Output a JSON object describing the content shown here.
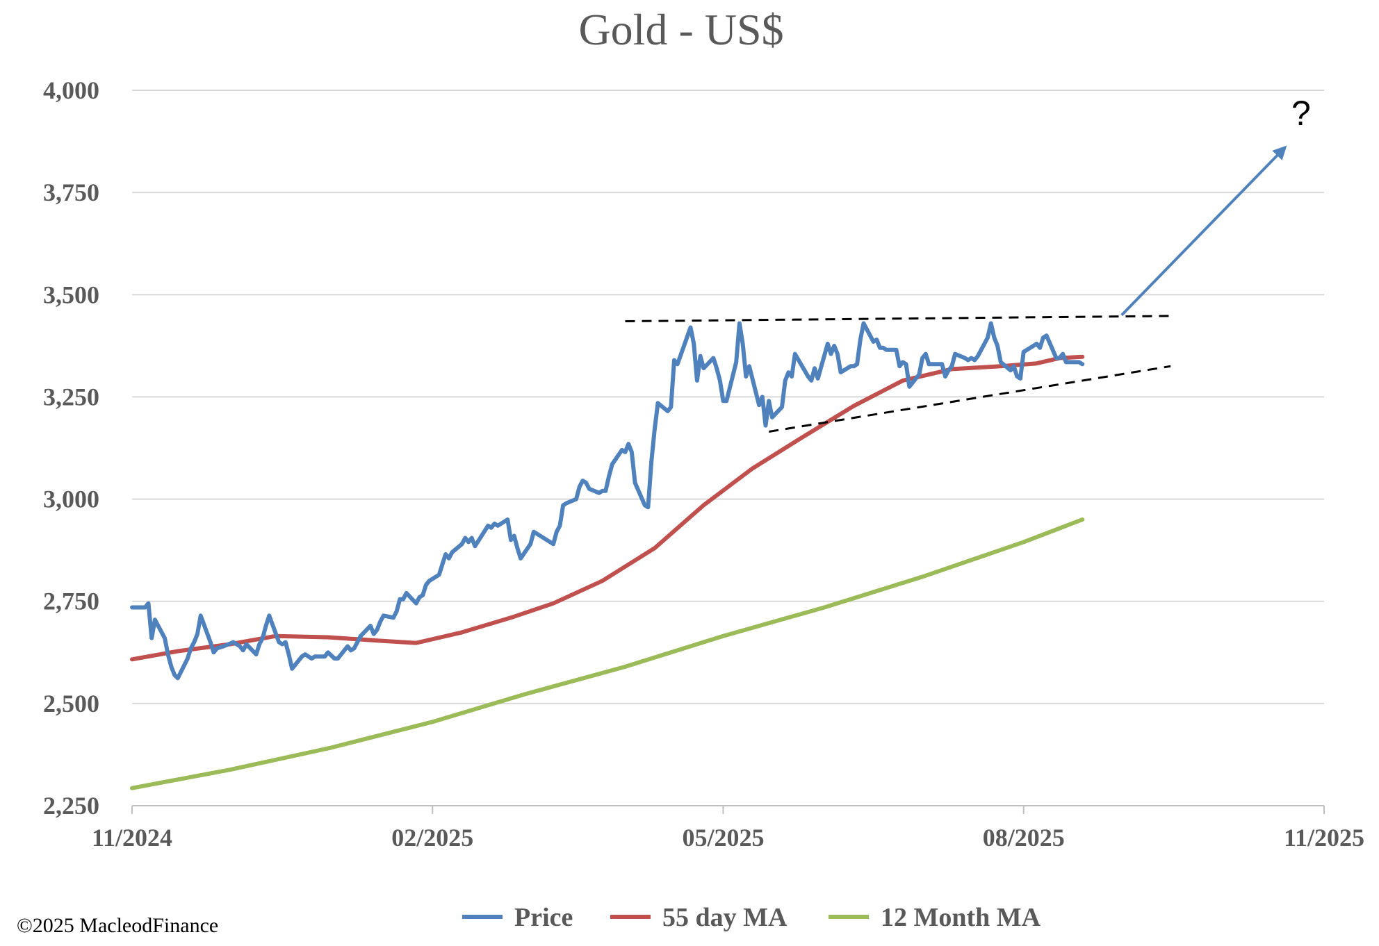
{
  "chart_data": {
    "type": "line",
    "title": "Gold - US$",
    "xlabel": "",
    "ylabel": "",
    "ylim": [
      2250,
      4000
    ],
    "xlim": [
      "2024-11",
      "2025-11"
    ],
    "grid": true,
    "legend_position": "bottom",
    "y_ticks": [
      {
        "value": 2250,
        "label": "2,250"
      },
      {
        "value": 2500,
        "label": "2,500"
      },
      {
        "value": 2750,
        "label": "2,750"
      },
      {
        "value": 3000,
        "label": "3,000"
      },
      {
        "value": 3250,
        "label": "3,250"
      },
      {
        "value": 3500,
        "label": "3,500"
      },
      {
        "value": 3750,
        "label": "3,750"
      },
      {
        "value": 4000,
        "label": "4,000"
      }
    ],
    "x_ticks": [
      {
        "value": "2024-11",
        "label": "11/2024"
      },
      {
        "value": "2025-02",
        "label": "02/2025"
      },
      {
        "value": "2025-05",
        "label": "05/2025"
      },
      {
        "value": "2025-08",
        "label": "08/2025"
      },
      {
        "value": "2025-11",
        "label": "11/2025"
      }
    ],
    "series": [
      {
        "name": "Price",
        "color": "#4f81bd",
        "points": [
          [
            "2024-11-01",
            2735
          ],
          [
            "2024-11-05",
            2735
          ],
          [
            "2024-11-06",
            2745
          ],
          [
            "2024-11-07",
            2660
          ],
          [
            "2024-11-08",
            2705
          ],
          [
            "2024-11-11",
            2660
          ],
          [
            "2024-11-12",
            2620
          ],
          [
            "2024-11-13",
            2590
          ],
          [
            "2024-11-14",
            2570
          ],
          [
            "2024-11-15",
            2562
          ],
          [
            "2024-11-18",
            2610
          ],
          [
            "2024-11-19",
            2635
          ],
          [
            "2024-11-20",
            2650
          ],
          [
            "2024-11-21",
            2670
          ],
          [
            "2024-11-22",
            2715
          ],
          [
            "2024-11-25",
            2650
          ],
          [
            "2024-11-26",
            2625
          ],
          [
            "2024-11-27",
            2635
          ],
          [
            "2024-11-29",
            2640
          ],
          [
            "2024-12-02",
            2650
          ],
          [
            "2024-12-03",
            2645
          ],
          [
            "2024-12-04",
            2640
          ],
          [
            "2024-12-05",
            2630
          ],
          [
            "2024-12-06",
            2645
          ],
          [
            "2024-12-09",
            2620
          ],
          [
            "2024-12-10",
            2645
          ],
          [
            "2024-12-11",
            2660
          ],
          [
            "2024-12-12",
            2690
          ],
          [
            "2024-12-13",
            2715
          ],
          [
            "2024-12-16",
            2650
          ],
          [
            "2024-12-17",
            2645
          ],
          [
            "2024-12-18",
            2650
          ],
          [
            "2024-12-19",
            2620
          ],
          [
            "2024-12-20",
            2585
          ],
          [
            "2024-12-23",
            2615
          ],
          [
            "2024-12-24",
            2620
          ],
          [
            "2024-12-26",
            2610
          ],
          [
            "2024-12-27",
            2615
          ],
          [
            "2024-12-30",
            2615
          ],
          [
            "2024-12-31",
            2625
          ],
          [
            "2025-01-02",
            2610
          ],
          [
            "2025-01-03",
            2610
          ],
          [
            "2025-01-06",
            2640
          ],
          [
            "2025-01-07",
            2630
          ],
          [
            "2025-01-08",
            2635
          ],
          [
            "2025-01-09",
            2650
          ],
          [
            "2025-01-10",
            2665
          ],
          [
            "2025-01-13",
            2690
          ],
          [
            "2025-01-14",
            2670
          ],
          [
            "2025-01-15",
            2680
          ],
          [
            "2025-01-16",
            2700
          ],
          [
            "2025-01-17",
            2715
          ],
          [
            "2025-01-20",
            2710
          ],
          [
            "2025-01-21",
            2725
          ],
          [
            "2025-01-22",
            2755
          ],
          [
            "2025-01-23",
            2755
          ],
          [
            "2025-01-24",
            2770
          ],
          [
            "2025-01-27",
            2745
          ],
          [
            "2025-01-28",
            2760
          ],
          [
            "2025-01-29",
            2765
          ],
          [
            "2025-01-30",
            2790
          ],
          [
            "2025-01-31",
            2800
          ],
          [
            "2025-02-03",
            2815
          ],
          [
            "2025-02-04",
            2840
          ],
          [
            "2025-02-05",
            2865
          ],
          [
            "2025-02-06",
            2855
          ],
          [
            "2025-02-07",
            2870
          ],
          [
            "2025-02-10",
            2890
          ],
          [
            "2025-02-11",
            2905
          ],
          [
            "2025-02-12",
            2895
          ],
          [
            "2025-02-13",
            2905
          ],
          [
            "2025-02-14",
            2885
          ],
          [
            "2025-02-18",
            2935
          ],
          [
            "2025-02-19",
            2930
          ],
          [
            "2025-02-20",
            2940
          ],
          [
            "2025-02-21",
            2935
          ],
          [
            "2025-02-24",
            2950
          ],
          [
            "2025-02-25",
            2900
          ],
          [
            "2025-02-26",
            2910
          ],
          [
            "2025-02-27",
            2880
          ],
          [
            "2025-02-28",
            2855
          ],
          [
            "2025-03-03",
            2890
          ],
          [
            "2025-03-04",
            2920
          ],
          [
            "2025-03-05",
            2915
          ],
          [
            "2025-03-06",
            2910
          ],
          [
            "2025-03-07",
            2905
          ],
          [
            "2025-03-10",
            2890
          ],
          [
            "2025-03-11",
            2920
          ],
          [
            "2025-03-12",
            2935
          ],
          [
            "2025-03-13",
            2985
          ],
          [
            "2025-03-14",
            2990
          ],
          [
            "2025-03-17",
            3000
          ],
          [
            "2025-03-18",
            3030
          ],
          [
            "2025-03-19",
            3045
          ],
          [
            "2025-03-20",
            3040
          ],
          [
            "2025-03-21",
            3025
          ],
          [
            "2025-03-24",
            3015
          ],
          [
            "2025-03-25",
            3020
          ],
          [
            "2025-03-26",
            3020
          ],
          [
            "2025-03-27",
            3055
          ],
          [
            "2025-03-28",
            3085
          ],
          [
            "2025-03-31",
            3120
          ],
          [
            "2025-04-01",
            3115
          ],
          [
            "2025-04-02",
            3135
          ],
          [
            "2025-04-03",
            3115
          ],
          [
            "2025-04-04",
            3040
          ],
          [
            "2025-04-07",
            2985
          ],
          [
            "2025-04-08",
            2980
          ],
          [
            "2025-04-09",
            3090
          ],
          [
            "2025-04-10",
            3170
          ],
          [
            "2025-04-11",
            3235
          ],
          [
            "2025-04-14",
            3215
          ],
          [
            "2025-04-15",
            3225
          ],
          [
            "2025-04-16",
            3340
          ],
          [
            "2025-04-17",
            3330
          ],
          [
            "2025-04-21",
            3420
          ],
          [
            "2025-04-22",
            3380
          ],
          [
            "2025-04-23",
            3290
          ],
          [
            "2025-04-24",
            3350
          ],
          [
            "2025-04-25",
            3320
          ],
          [
            "2025-04-28",
            3345
          ],
          [
            "2025-04-29",
            3320
          ],
          [
            "2025-04-30",
            3290
          ],
          [
            "2025-05-01",
            3240
          ],
          [
            "2025-05-02",
            3240
          ],
          [
            "2025-05-05",
            3335
          ],
          [
            "2025-05-06",
            3430
          ],
          [
            "2025-05-07",
            3380
          ],
          [
            "2025-05-08",
            3300
          ],
          [
            "2025-05-09",
            3325
          ],
          [
            "2025-05-12",
            3230
          ],
          [
            "2025-05-13",
            3250
          ],
          [
            "2025-05-14",
            3180
          ],
          [
            "2025-05-15",
            3240
          ],
          [
            "2025-05-16",
            3200
          ],
          [
            "2025-05-19",
            3225
          ],
          [
            "2025-05-20",
            3290
          ],
          [
            "2025-05-21",
            3310
          ],
          [
            "2025-05-22",
            3300
          ],
          [
            "2025-05-23",
            3355
          ],
          [
            "2025-05-27",
            3300
          ],
          [
            "2025-05-28",
            3290
          ],
          [
            "2025-05-29",
            3320
          ],
          [
            "2025-05-30",
            3295
          ],
          [
            "2025-06-02",
            3380
          ],
          [
            "2025-06-03",
            3355
          ],
          [
            "2025-06-04",
            3375
          ],
          [
            "2025-06-05",
            3355
          ],
          [
            "2025-06-06",
            3310
          ],
          [
            "2025-06-09",
            3325
          ],
          [
            "2025-06-10",
            3325
          ],
          [
            "2025-06-11",
            3330
          ],
          [
            "2025-06-12",
            3390
          ],
          [
            "2025-06-13",
            3430
          ],
          [
            "2025-06-16",
            3385
          ],
          [
            "2025-06-17",
            3390
          ],
          [
            "2025-06-18",
            3370
          ],
          [
            "2025-06-19",
            3370
          ],
          [
            "2025-06-20",
            3365
          ],
          [
            "2025-06-23",
            3365
          ],
          [
            "2025-06-24",
            3325
          ],
          [
            "2025-06-25",
            3335
          ],
          [
            "2025-06-26",
            3330
          ],
          [
            "2025-06-27",
            3275
          ],
          [
            "2025-06-30",
            3305
          ],
          [
            "2025-07-01",
            3345
          ],
          [
            "2025-07-02",
            3355
          ],
          [
            "2025-07-03",
            3330
          ],
          [
            "2025-07-07",
            3330
          ],
          [
            "2025-07-08",
            3300
          ],
          [
            "2025-07-09",
            3315
          ],
          [
            "2025-07-10",
            3325
          ],
          [
            "2025-07-11",
            3355
          ],
          [
            "2025-07-14",
            3345
          ],
          [
            "2025-07-15",
            3340
          ],
          [
            "2025-07-16",
            3345
          ],
          [
            "2025-07-17",
            3340
          ],
          [
            "2025-07-18",
            3350
          ],
          [
            "2025-07-21",
            3395
          ],
          [
            "2025-07-22",
            3430
          ],
          [
            "2025-07-23",
            3395
          ],
          [
            "2025-07-24",
            3375
          ],
          [
            "2025-07-25",
            3335
          ],
          [
            "2025-07-28",
            3315
          ],
          [
            "2025-07-29",
            3325
          ],
          [
            "2025-07-30",
            3300
          ],
          [
            "2025-07-31",
            3295
          ],
          [
            "2025-08-01",
            3360
          ],
          [
            "2025-08-04",
            3375
          ],
          [
            "2025-08-05",
            3380
          ],
          [
            "2025-08-06",
            3370
          ],
          [
            "2025-08-07",
            3395
          ],
          [
            "2025-08-08",
            3400
          ],
          [
            "2025-08-11",
            3345
          ],
          [
            "2025-08-12",
            3345
          ],
          [
            "2025-08-13",
            3355
          ],
          [
            "2025-08-14",
            3335
          ],
          [
            "2025-08-15",
            3335
          ],
          [
            "2025-08-18",
            3335
          ],
          [
            "2025-08-19",
            3330
          ]
        ]
      },
      {
        "name": "55 day MA",
        "color": "#c0504d",
        "points": [
          [
            "2024-11-01",
            2608
          ],
          [
            "2024-11-15",
            2628
          ],
          [
            "2024-12-01",
            2645
          ],
          [
            "2024-12-15",
            2665
          ],
          [
            "2024-12-31",
            2662
          ],
          [
            "2025-01-15",
            2654
          ],
          [
            "2025-01-27",
            2648
          ],
          [
            "2025-02-10",
            2674
          ],
          [
            "2025-02-25",
            2710
          ],
          [
            "2025-03-10",
            2745
          ],
          [
            "2025-03-25",
            2800
          ],
          [
            "2025-04-10",
            2880
          ],
          [
            "2025-04-25",
            2985
          ],
          [
            "2025-05-10",
            3075
          ],
          [
            "2025-05-25",
            3150
          ],
          [
            "2025-06-10",
            3228
          ],
          [
            "2025-06-25",
            3290
          ],
          [
            "2025-07-10",
            3318
          ],
          [
            "2025-07-25",
            3325
          ],
          [
            "2025-08-05",
            3332
          ],
          [
            "2025-08-12",
            3345
          ],
          [
            "2025-08-19",
            3348
          ]
        ]
      },
      {
        "name": "12 Month MA",
        "color": "#9bbb59",
        "points": [
          [
            "2024-11-01",
            2293
          ],
          [
            "2024-12-01",
            2338
          ],
          [
            "2025-01-01",
            2392
          ],
          [
            "2025-02-01",
            2455
          ],
          [
            "2025-03-01",
            2522
          ],
          [
            "2025-04-01",
            2590
          ],
          [
            "2025-05-01",
            2665
          ],
          [
            "2025-06-01",
            2735
          ],
          [
            "2025-07-01",
            2810
          ],
          [
            "2025-08-01",
            2895
          ],
          [
            "2025-08-19",
            2950
          ]
        ]
      }
    ],
    "annotations": [
      {
        "type": "dashed-line",
        "from": [
          "2025-04-01",
          3435
        ],
        "to": [
          "2025-09-15",
          3448
        ]
      },
      {
        "type": "dashed-line",
        "from": [
          "2025-05-15",
          3165
        ],
        "to": [
          "2025-09-15",
          3325
        ]
      },
      {
        "type": "arrow",
        "from": [
          "2025-08-31",
          3450
        ],
        "to": [
          "2025-10-20",
          3860
        ],
        "color": "#4f81bd"
      },
      {
        "type": "text",
        "text": "?",
        "at": [
          "2025-10-22",
          3915
        ]
      }
    ]
  },
  "footer": {
    "copyright": "©2025 MacleodFinance"
  }
}
